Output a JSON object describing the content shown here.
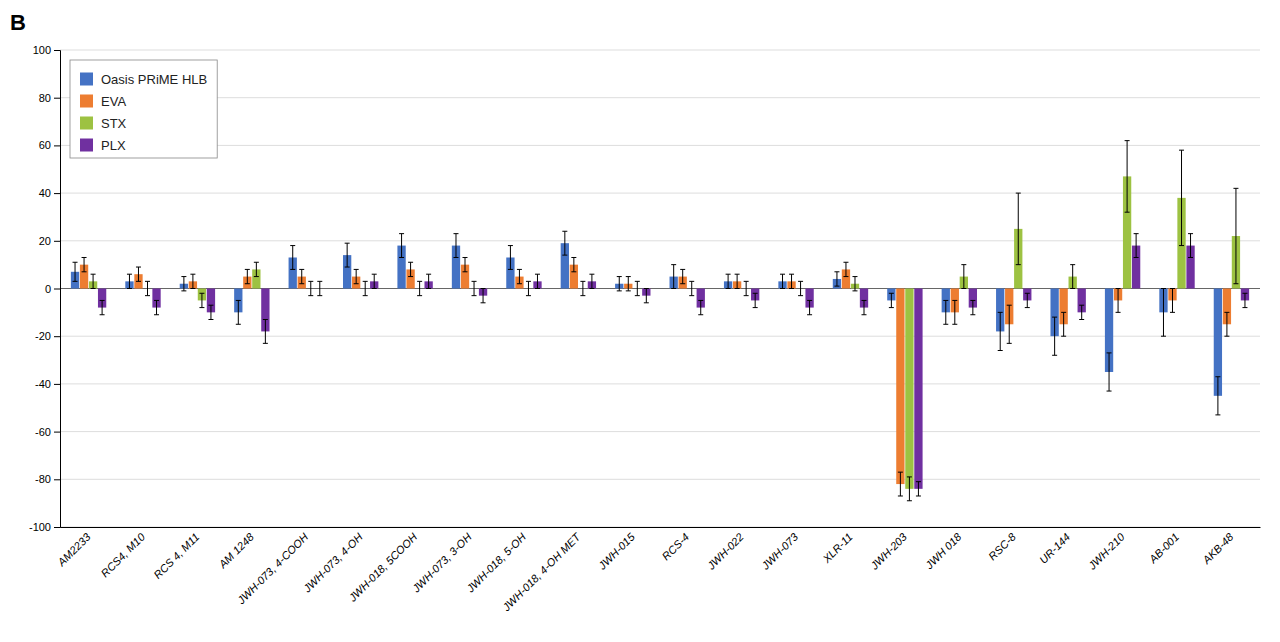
{
  "chart_data": {
    "type": "bar",
    "title": "B",
    "categories": [
      "AM2233",
      "RCS4, M10",
      "RCS 4, M11",
      "AM 1248",
      "JWH-073, 4-COOH",
      "JWH-073, 4-OH",
      "JWH-018, 5COOH",
      "JWH-073, 3-OH",
      "JWH-018, 5-OH",
      "JWH-018, 4-OH MET",
      "JWH-015",
      "RCS-4",
      "JWH-022",
      "JWH-073",
      "XLR-11",
      "JWH-203",
      "JWH 018",
      "RSC-8",
      "UR-144",
      "JWH-210",
      "AB-001",
      "AKB-48"
    ],
    "series": [
      {
        "name": "Oasis PRiME HLB",
        "color": "#4472C4",
        "values": [
          7,
          3,
          2,
          -10,
          13,
          14,
          18,
          18,
          13,
          19,
          2,
          5,
          3,
          3,
          4,
          -5,
          -10,
          -18,
          -20,
          -35,
          -10,
          -45
        ],
        "errors": [
          4,
          3,
          3,
          5,
          5,
          5,
          5,
          5,
          5,
          5,
          3,
          5,
          3,
          3,
          3,
          3,
          5,
          8,
          8,
          8,
          10,
          8
        ]
      },
      {
        "name": "EVA",
        "color": "#ED7D31",
        "values": [
          10,
          6,
          3,
          5,
          5,
          5,
          8,
          10,
          5,
          10,
          2,
          5,
          3,
          3,
          8,
          -82,
          -10,
          -15,
          -15,
          -5,
          -5,
          -15
        ],
        "errors": [
          3,
          3,
          3,
          3,
          3,
          3,
          3,
          3,
          3,
          3,
          3,
          3,
          3,
          3,
          3,
          5,
          5,
          8,
          5,
          5,
          5,
          5
        ]
      },
      {
        "name": "STX",
        "color": "#9DC242",
        "values": [
          3,
          0,
          -5,
          8,
          0,
          0,
          0,
          0,
          0,
          0,
          0,
          0,
          0,
          0,
          2,
          -84,
          5,
          25,
          5,
          47,
          38,
          22
        ],
        "errors": [
          3,
          3,
          3,
          3,
          3,
          3,
          3,
          3,
          3,
          3,
          3,
          3,
          3,
          3,
          3,
          5,
          5,
          15,
          5,
          15,
          20,
          20
        ]
      },
      {
        "name": "PLX",
        "color": "#7030A0",
        "values": [
          -8,
          -8,
          -10,
          -18,
          0,
          3,
          3,
          -3,
          3,
          3,
          -3,
          -8,
          -5,
          -8,
          -8,
          -84,
          -8,
          -5,
          -10,
          18,
          18,
          -5
        ],
        "errors": [
          3,
          3,
          3,
          5,
          3,
          3,
          3,
          3,
          3,
          3,
          3,
          3,
          3,
          3,
          3,
          3,
          3,
          3,
          3,
          5,
          5,
          3
        ]
      }
    ],
    "ylim": [
      -100,
      100
    ],
    "yticks": [
      -100,
      -80,
      -60,
      -40,
      -20,
      0,
      20,
      40,
      60,
      80,
      100
    ],
    "grid": true,
    "legend": "upper left"
  }
}
